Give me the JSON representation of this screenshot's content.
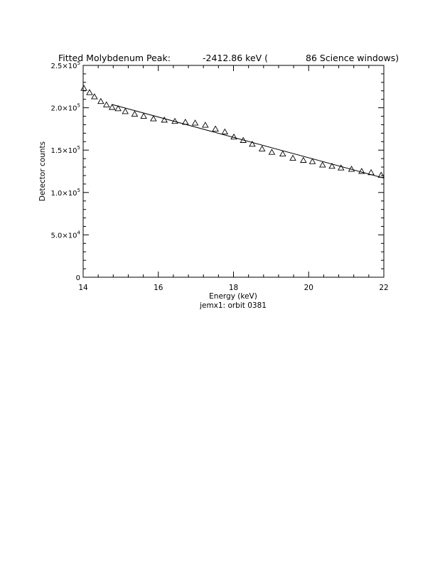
{
  "chart_data": {
    "type": "scatter",
    "title_left": "Fitted Molybdenum Peak:",
    "title_mid": "-2412.86 keV (",
    "title_right": "86 Science windows)",
    "xlabel": "Energy (keV)",
    "subtitle": "jemx1: orbit 0381",
    "ylabel": "Detector counts",
    "xlim": [
      14,
      22
    ],
    "ylim": [
      0,
      250000
    ],
    "x_ticks": [
      {
        "value": 14,
        "label": "14"
      },
      {
        "value": 16,
        "label": "16"
      },
      {
        "value": 18,
        "label": "18"
      },
      {
        "value": 20,
        "label": "20"
      },
      {
        "value": 22,
        "label": "22"
      }
    ],
    "y_ticks": [
      {
        "value": 0,
        "mant": "0",
        "exp": ""
      },
      {
        "value": 50000,
        "mant": "5.0×10",
        "exp": "4"
      },
      {
        "value": 100000,
        "mant": "1.0×10",
        "exp": "5"
      },
      {
        "value": 150000,
        "mant": "1.5×10",
        "exp": "5"
      },
      {
        "value": 200000,
        "mant": "2.0×10",
        "exp": "5"
      },
      {
        "value": 250000,
        "mant": "2.5×10",
        "exp": "5"
      }
    ],
    "series": [
      {
        "marker": "triangle",
        "x": [
          14.02,
          14.17,
          14.3,
          14.47,
          14.62,
          14.77,
          14.93,
          15.12,
          15.37,
          15.61,
          15.87,
          16.16,
          16.44,
          16.72,
          16.98,
          17.25,
          17.52,
          17.77,
          18.01,
          18.26,
          18.5,
          18.76,
          19.02,
          19.31,
          19.58,
          19.86,
          20.1,
          20.37,
          20.62,
          20.86,
          21.14,
          21.41,
          21.66,
          21.93
        ],
        "y": [
          223000,
          218000,
          213000,
          207500,
          203500,
          200500,
          199000,
          195500,
          192500,
          190000,
          187000,
          185500,
          184000,
          183000,
          182000,
          179500,
          175000,
          171500,
          165500,
          161500,
          157000,
          151500,
          147500,
          145500,
          140500,
          138000,
          136500,
          132500,
          131000,
          129000,
          127500,
          125000,
          123500,
          120500
        ]
      },
      {
        "marker": "line",
        "x": [
          14.76,
          22.0
        ],
        "y": [
          204000,
          117000
        ]
      }
    ]
  }
}
